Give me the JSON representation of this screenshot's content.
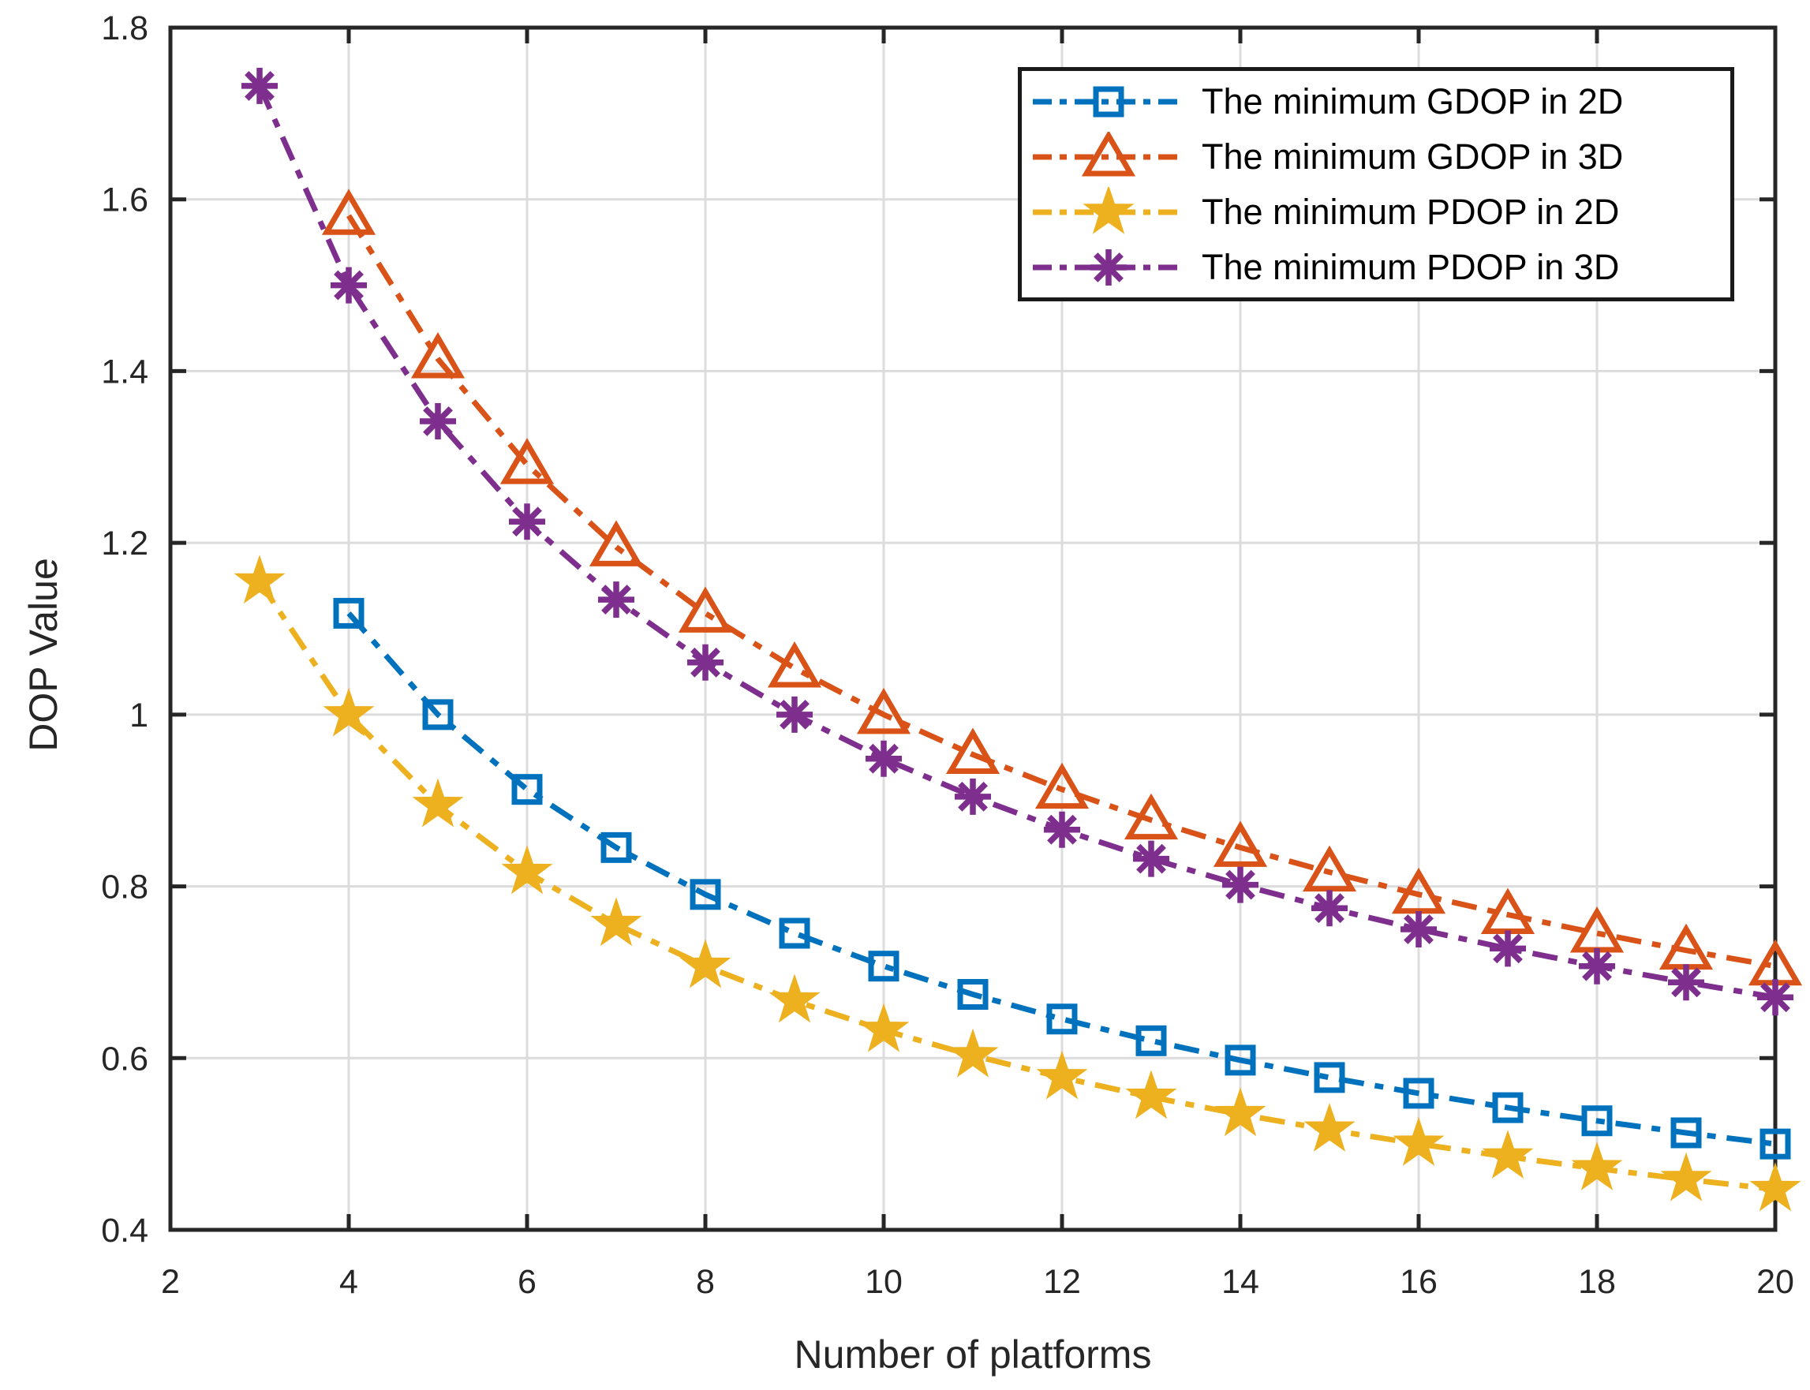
{
  "chart_data": {
    "type": "line",
    "title": "",
    "xlabel": "Number of platforms",
    "ylabel": "DOP Value",
    "xlim": [
      2,
      20
    ],
    "ylim": [
      0.4,
      1.8
    ],
    "x_ticks": [
      2,
      4,
      6,
      8,
      10,
      12,
      14,
      16,
      18,
      20
    ],
    "x_tick_labels": [
      "2",
      "4",
      "6",
      "8",
      "10",
      "12",
      "14",
      "16",
      "18",
      "20"
    ],
    "y_ticks": [
      0.4,
      0.6,
      0.8,
      1.0,
      1.2,
      1.4,
      1.6,
      1.8
    ],
    "y_tick_labels": [
      "0.4",
      "0.6",
      "0.8",
      "1",
      "1.2",
      "1.4",
      "1.6",
      "1.8"
    ],
    "grid": true,
    "legend": {
      "position": "top-right",
      "border": true
    },
    "series": [
      {
        "name": "The minimum GDOP in 2D",
        "color": "#0072BD",
        "marker": "square",
        "line_style": "dash-dot",
        "x": [
          4,
          5,
          6,
          7,
          8,
          9,
          10,
          11,
          12,
          13,
          14,
          15,
          16,
          17,
          18,
          19,
          20
        ],
        "y": [
          1.118,
          1.0,
          0.9129,
          0.8452,
          0.7906,
          0.7454,
          0.7071,
          0.6742,
          0.6455,
          0.6202,
          0.5976,
          0.5774,
          0.559,
          0.5423,
          0.527,
          0.513,
          0.5
        ]
      },
      {
        "name": "The minimum GDOP in 3D",
        "color": "#D95319",
        "marker": "triangle-up",
        "line_style": "dash-dot",
        "x": [
          4,
          5,
          6,
          7,
          8,
          9,
          10,
          11,
          12,
          13,
          14,
          15,
          16,
          17,
          18,
          19,
          20
        ],
        "y": [
          1.5811,
          1.4142,
          1.291,
          1.1952,
          1.118,
          1.0541,
          1.0,
          0.9535,
          0.9129,
          0.8771,
          0.8452,
          0.8165,
          0.7906,
          0.767,
          0.7454,
          0.7255,
          0.7071
        ]
      },
      {
        "name": "The minimum PDOP in 2D",
        "color": "#EDB120",
        "marker": "pentagram",
        "line_style": "dash-dot",
        "x": [
          3,
          4,
          5,
          6,
          7,
          8,
          9,
          10,
          11,
          12,
          13,
          14,
          15,
          16,
          17,
          18,
          19,
          20
        ],
        "y": [
          1.1547,
          1.0,
          0.8944,
          0.8165,
          0.7559,
          0.7071,
          0.6667,
          0.6325,
          0.603,
          0.5774,
          0.5547,
          0.5345,
          0.5164,
          0.5,
          0.4851,
          0.4714,
          0.4588,
          0.4472
        ]
      },
      {
        "name": "The minimum PDOP in 3D",
        "color": "#7E2F8E",
        "marker": "asterisk",
        "line_style": "dash-dot",
        "x": [
          3,
          4,
          5,
          6,
          7,
          8,
          9,
          10,
          11,
          12,
          13,
          14,
          15,
          16,
          17,
          18,
          19,
          20
        ],
        "y": [
          1.7321,
          1.5,
          1.3416,
          1.2247,
          1.1339,
          1.0607,
          1.0,
          0.9487,
          0.9045,
          0.866,
          0.8321,
          0.8018,
          0.7746,
          0.75,
          0.7276,
          0.7071,
          0.6882,
          0.6708
        ]
      }
    ]
  }
}
